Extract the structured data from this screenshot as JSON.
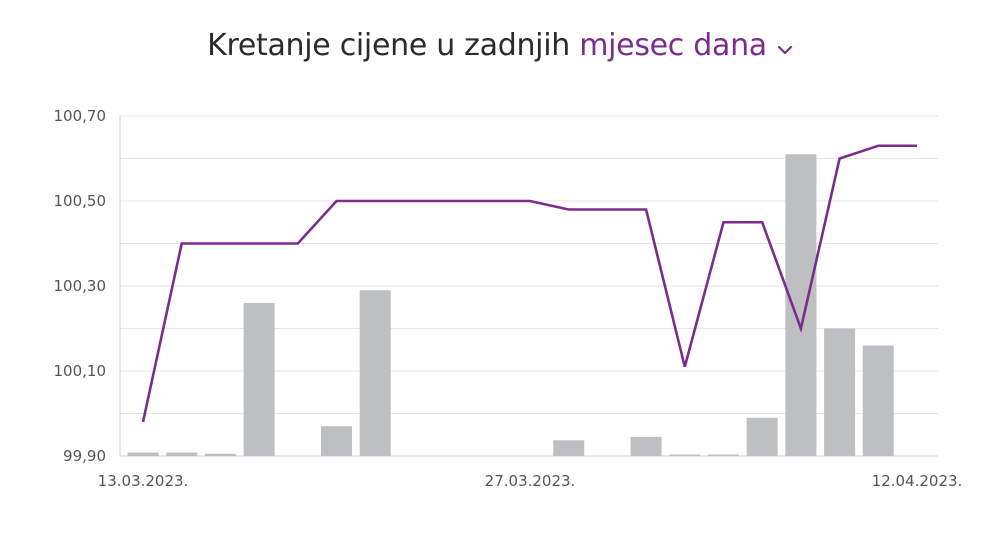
{
  "header": {
    "title_prefix": "Kretanje cijene u zadnjih",
    "period_selector": "mjesec dana"
  },
  "colors": {
    "line": "#7b2d8e",
    "bars": "#bdbfc1",
    "grid": "#e6e6e6"
  },
  "icons": {
    "period_dropdown": "chevron-down-icon"
  },
  "chart_data": {
    "type": "bar",
    "title": "",
    "xlabel": "",
    "ylabel": "",
    "y_ticks": [
      "99,90",
      "100,10",
      "100,30",
      "100,50",
      "100,70"
    ],
    "ylim": [
      99.9,
      100.7
    ],
    "x_tick_labels": [
      {
        "index": 0,
        "label": "13.03.2023."
      },
      {
        "index": 10,
        "label": "27.03.2023."
      },
      {
        "index": 20,
        "label": "12.04.2023."
      }
    ],
    "grid": true,
    "legend": "none",
    "line_series": {
      "type": "line",
      "values": [
        99.98,
        100.4,
        100.4,
        100.4,
        100.4,
        100.5,
        100.5,
        100.5,
        100.5,
        100.5,
        100.5,
        100.48,
        100.48,
        100.48,
        100.11,
        100.45,
        100.45,
        100.2,
        100.6,
        100.63,
        100.63
      ]
    },
    "bar_series": {
      "type": "bar",
      "values": [
        0.008,
        0.008,
        0.005,
        0.36,
        null,
        0.07,
        0.39,
        null,
        null,
        null,
        null,
        0.037,
        null,
        0.045,
        0.002,
        0.003,
        0.09,
        0.71,
        0.3,
        0.26,
        null
      ]
    }
  }
}
